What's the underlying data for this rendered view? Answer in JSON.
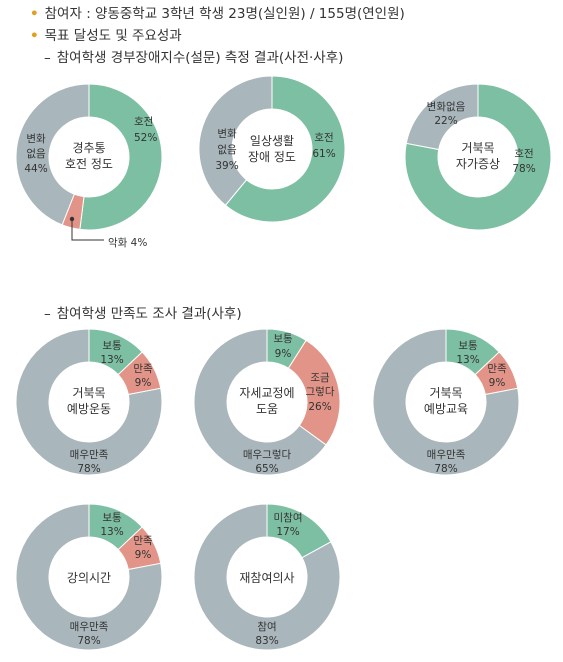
{
  "header": {
    "participants": "참여자 : 양동중학교 3학년 학생 23명(실인원) / 155명(연인원)",
    "results_title": "목표 달성도 및 주요성과",
    "section1_title": "참여학생 경부장애지수(설문) 측정 결과(사전·사후)",
    "section2_title": "참여학생 만족도 조사 결과(사후)"
  },
  "colors": {
    "green": "#7dbfa2",
    "gray": "#a9b6bc",
    "salmon": "#e39488",
    "line": "#333333"
  },
  "chart_data": [
    {
      "type": "pie",
      "center_label": [
        "경추통",
        "호전 정도"
      ],
      "slices": [
        {
          "label": [
            "호전",
            "52%"
          ],
          "value": 52,
          "color": "#7dbfa2"
        },
        {
          "label": [
            "악화 4%"
          ],
          "value": 4,
          "color": "#e39488"
        },
        {
          "label": [
            "변화",
            "없음",
            "44%"
          ],
          "value": 44,
          "color": "#a9b6bc"
        }
      ]
    },
    {
      "type": "pie",
      "center_label": [
        "일상생활",
        "장애 정도"
      ],
      "slices": [
        {
          "label": [
            "호전",
            "61%"
          ],
          "value": 61,
          "color": "#7dbfa2"
        },
        {
          "label": [
            "변화",
            "없음",
            "39%"
          ],
          "value": 39,
          "color": "#a9b6bc"
        }
      ]
    },
    {
      "type": "pie",
      "center_label": [
        "거북목",
        "자가증상"
      ],
      "slices": [
        {
          "label": [
            "호전",
            "78%"
          ],
          "value": 78,
          "color": "#7dbfa2"
        },
        {
          "label": [
            "변화없음",
            "22%"
          ],
          "value": 22,
          "color": "#a9b6bc"
        }
      ]
    },
    {
      "type": "pie",
      "center_label": [
        "거북목",
        "예방운동"
      ],
      "slices": [
        {
          "label": [
            "보통",
            "13%"
          ],
          "value": 13,
          "color": "#7dbfa2"
        },
        {
          "label": [
            "만족",
            "9%"
          ],
          "value": 9,
          "color": "#e39488"
        },
        {
          "label": [
            "매우만족",
            "78%"
          ],
          "value": 78,
          "color": "#a9b6bc"
        }
      ]
    },
    {
      "type": "pie",
      "center_label": [
        "자세교정에",
        "도움"
      ],
      "slices": [
        {
          "label": [
            "보통",
            "9%"
          ],
          "value": 9,
          "color": "#7dbfa2"
        },
        {
          "label": [
            "조금",
            "그렇다",
            "26%"
          ],
          "value": 26,
          "color": "#e39488"
        },
        {
          "label": [
            "매우그렇다",
            "65%"
          ],
          "value": 65,
          "color": "#a9b6bc"
        }
      ]
    },
    {
      "type": "pie",
      "center_label": [
        "거북목",
        "예방교육"
      ],
      "slices": [
        {
          "label": [
            "보통",
            "13%"
          ],
          "value": 13,
          "color": "#7dbfa2"
        },
        {
          "label": [
            "만족",
            "9%"
          ],
          "value": 9,
          "color": "#e39488"
        },
        {
          "label": [
            "매우만족",
            "78%"
          ],
          "value": 78,
          "color": "#a9b6bc"
        }
      ]
    },
    {
      "type": "pie",
      "center_label": [
        "강의시간"
      ],
      "slices": [
        {
          "label": [
            "보통",
            "13%"
          ],
          "value": 13,
          "color": "#7dbfa2"
        },
        {
          "label": [
            "만족",
            "9%"
          ],
          "value": 9,
          "color": "#e39488"
        },
        {
          "label": [
            "매우만족",
            "78%"
          ],
          "value": 78,
          "color": "#a9b6bc"
        }
      ]
    },
    {
      "type": "pie",
      "center_label": [
        "재참여의사"
      ],
      "slices": [
        {
          "label": [
            "미참여",
            "17%"
          ],
          "value": 17,
          "color": "#7dbfa2"
        },
        {
          "label": [
            "참여",
            "83%"
          ],
          "value": 83,
          "color": "#a9b6bc"
        }
      ]
    }
  ]
}
